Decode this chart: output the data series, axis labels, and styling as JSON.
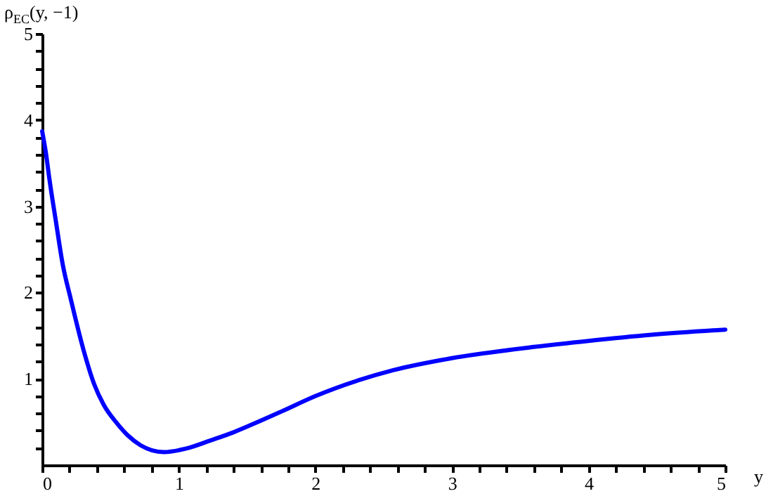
{
  "chart_data": {
    "type": "line",
    "xlabel": "y",
    "ylabel": "ρ$_{EC}$(y, −1)",
    "x": [
      0,
      0.03,
      0.05,
      0.1,
      0.15,
      0.21,
      0.3,
      0.38,
      0.45,
      0.55,
      0.63,
      0.72,
      0.89,
      1.05,
      1.24,
      1.4,
      1.55,
      1.75,
      2.0,
      2.57,
      3.0,
      3.6,
      4.0,
      4.46,
      5.0
    ],
    "series": [
      {
        "color": "#0000ff",
        "values": [
          3.87,
          3.59,
          3.35,
          2.83,
          2.33,
          1.92,
          1.35,
          0.94,
          0.7,
          0.48,
          0.34,
          0.23,
          0.15,
          0.19,
          0.29,
          0.38,
          0.48,
          0.62,
          0.8,
          1.1,
          1.24,
          1.37,
          1.44,
          1.51,
          1.57
        ]
      }
    ],
    "xlim": [
      0,
      5
    ],
    "ylim": [
      0,
      5
    ],
    "xticks": [
      0,
      {
        "value": 0.2,
        "label": null
      },
      {
        "value": 0.4,
        "label": null
      },
      {
        "value": 0.6,
        "label": null
      },
      {
        "value": 0.8,
        "label": null
      },
      1,
      {
        "value": 1.2,
        "label": null
      },
      {
        "value": 1.4,
        "label": null
      },
      {
        "value": 1.6,
        "label": null
      },
      {
        "value": 1.8,
        "label": null
      },
      2,
      {
        "value": 2.2,
        "label": null
      },
      {
        "value": 2.4,
        "label": null
      },
      {
        "value": 2.6,
        "label": null
      },
      {
        "value": 2.8,
        "label": null
      },
      3,
      {
        "value": 3.2,
        "label": null
      },
      {
        "value": 3.4,
        "label": null
      },
      {
        "value": 3.6,
        "label": null
      },
      {
        "value": 3.8,
        "label": null
      },
      4,
      {
        "value": 4.2,
        "label": null
      },
      {
        "value": 4.4,
        "label": null
      },
      {
        "value": 4.6,
        "label": null
      },
      {
        "value": 4.8,
        "label": null
      },
      5
    ],
    "yticks": [
      {
        "value": 0.2,
        "label": null
      },
      {
        "value": 0.4,
        "label": null
      },
      {
        "value": 0.6,
        "label": null
      },
      {
        "value": 0.8,
        "label": null
      },
      1,
      {
        "value": 1.2,
        "label": null
      },
      {
        "value": 1.4,
        "label": null
      },
      {
        "value": 1.6,
        "label": null
      },
      {
        "value": 1.8,
        "label": null
      },
      2,
      {
        "value": 2.2,
        "label": null
      },
      {
        "value": 2.4,
        "label": null
      },
      {
        "value": 2.6,
        "label": null
      },
      {
        "value": 2.8,
        "label": null
      },
      3,
      {
        "value": 3.2,
        "label": null
      },
      {
        "value": 3.4,
        "label": null
      },
      {
        "value": 3.6,
        "label": null
      },
      {
        "value": 3.8,
        "label": null
      },
      4,
      {
        "value": 4.2,
        "label": null
      },
      {
        "value": 4.4,
        "label": null
      },
      {
        "value": 4.6,
        "label": null
      },
      {
        "value": 4.8,
        "label": null
      },
      5
    ],
    "grid": false,
    "marker": "none",
    "line_style": "solid"
  }
}
